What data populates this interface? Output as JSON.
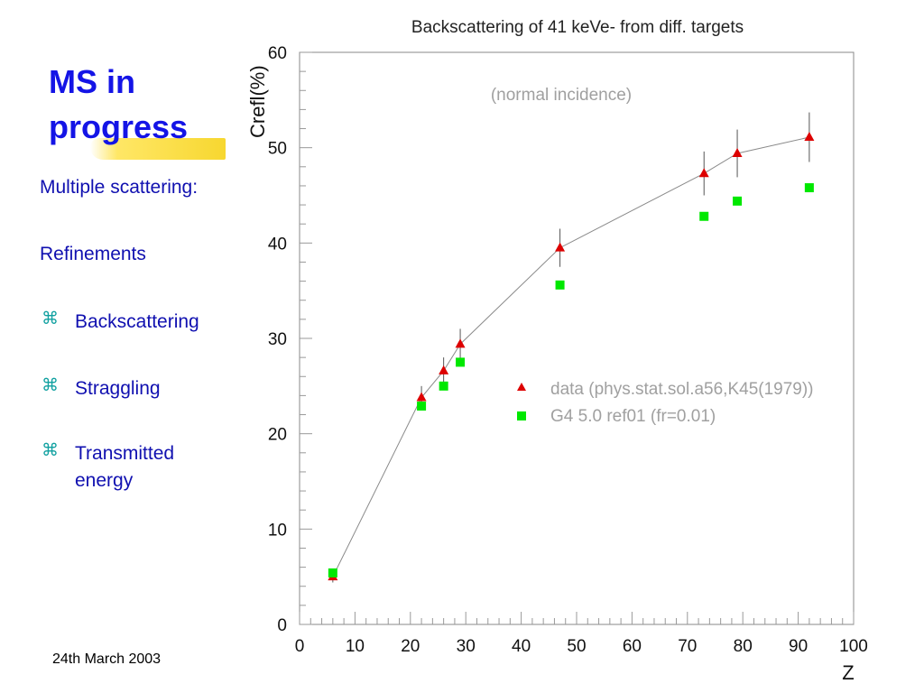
{
  "slide": {
    "title_line1": "MS in",
    "title_line2": "progress",
    "items": {
      "multiple_scattering": "Multiple scattering:",
      "refinements": "Refinements",
      "backscattering": "Backscattering",
      "straggling": "Straggling",
      "transmitted_energy": "Transmitted energy"
    },
    "bullet_glyph": "⌘",
    "date": "24th March 2003",
    "colors": {
      "title": "#1414e6",
      "body_text": "#1010b0",
      "bullet": "#10a0a0",
      "highlight": "#f7d730"
    }
  },
  "chart_data": {
    "type": "scatter",
    "title": "Backscattering of 41 keVe- from diff. targets",
    "subtitle": "(normal incidence)",
    "xlabel": "Z",
    "ylabel": "Crefl(%)",
    "xlim": [
      0,
      100
    ],
    "ylim": [
      0,
      60
    ],
    "xticks": [
      0,
      10,
      20,
      30,
      40,
      50,
      60,
      70,
      80,
      90,
      100
    ],
    "yticks": [
      0,
      10,
      20,
      30,
      40,
      50,
      60
    ],
    "grid": false,
    "legend_position": "center-right",
    "series": [
      {
        "name": "data (phys.stat.sol.a56,K45(1979))",
        "marker": "triangle",
        "color": "#dd0000",
        "x": [
          6,
          22,
          26,
          29,
          47,
          73,
          79,
          92
        ],
        "y": [
          5.0,
          23.8,
          26.6,
          29.4,
          39.5,
          47.3,
          49.4,
          51.1
        ],
        "yerr": [
          0.6,
          1.2,
          1.4,
          1.6,
          2.0,
          2.3,
          2.5,
          2.6
        ],
        "connected": true
      },
      {
        "name": "G4 5.0 ref01 (fr=0.01)",
        "marker": "square",
        "color": "#00e800",
        "x": [
          6,
          22,
          26,
          29,
          47,
          73,
          79,
          92
        ],
        "y": [
          5.4,
          22.9,
          25.0,
          27.5,
          35.6,
          42.8,
          44.4,
          45.8
        ],
        "connected": false
      }
    ]
  }
}
